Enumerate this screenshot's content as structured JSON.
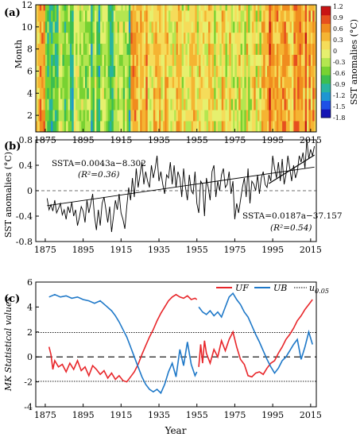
{
  "chart_data": [
    {
      "type": "heatmap",
      "panel_label": "(a)",
      "ylabel": "Month",
      "x_ticks": [
        "1875",
        "1895",
        "1915",
        "1935",
        "1955",
        "1975",
        "1995",
        "2015"
      ],
      "y_ticks": [
        "2",
        "4",
        "6",
        "8",
        "10",
        "12"
      ],
      "xlim": [
        1870,
        2018
      ],
      "ylim": [
        0.5,
        12
      ],
      "colorbar": {
        "label": "SST anomalies (°C)",
        "ticks": [
          "1.2",
          "0.9",
          "0.6",
          "0.3",
          "0",
          "-0.3",
          "-0.6",
          "-0.9",
          "-1.2",
          "-1.5",
          "-1.8"
        ],
        "colors": [
          "#1414b4",
          "#1e50e6",
          "#1e96d2",
          "#28b4a0",
          "#3cbe50",
          "#78d232",
          "#b4e650",
          "#e6f06e",
          "#f5dc5a",
          "#f5b432",
          "#f08c1e",
          "#e6501e",
          "#c81414"
        ]
      },
      "description_values": {
        "period_means": [
          {
            "from": 1875,
            "to": 1920,
            "mean": -0.5
          },
          {
            "from": 1920,
            "to": 1945,
            "mean": 0.25
          },
          {
            "from": 1945,
            "to": 1975,
            "mean": 0.05
          },
          {
            "from": 1975,
            "to": 1990,
            "mean": 0.0
          },
          {
            "from": 1990,
            "to": 2017,
            "mean": 0.45
          }
        ]
      }
    },
    {
      "type": "line",
      "panel_label": "(b)",
      "ylabel": "SST anomalies (°C)",
      "x_ticks": [
        "1875",
        "1895",
        "1915",
        "1935",
        "1955",
        "1975",
        "1995",
        "2015"
      ],
      "y_ticks": [
        "0.8",
        "0.4",
        "0",
        "-0.4",
        "-0.8"
      ],
      "xlim": [
        1870,
        2018
      ],
      "ylim": [
        -0.8,
        0.8
      ],
      "series": [
        {
          "color": "#000000",
          "x": [
            1876,
            1877,
            1878,
            1879,
            1880,
            1881,
            1882,
            1883,
            1884,
            1885,
            1886,
            1887,
            1888,
            1889,
            1890,
            1891,
            1892,
            1893,
            1894,
            1895,
            1896,
            1897,
            1898,
            1899,
            1900,
            1901,
            1902,
            1903,
            1904,
            1905,
            1906,
            1907,
            1908,
            1909,
            1910,
            1911,
            1912,
            1913,
            1914,
            1915,
            1916,
            1917,
            1918,
            1919,
            1920,
            1921,
            1922,
            1923,
            1924,
            1925,
            1926,
            1927,
            1928,
            1929,
            1930,
            1931,
            1932,
            1933,
            1934,
            1935,
            1936,
            1937,
            1938,
            1939,
            1940,
            1941,
            1942,
            1943,
            1944,
            1945,
            1946,
            1947,
            1948,
            1949,
            1950,
            1951,
            1952,
            1953,
            1954,
            1955,
            1956,
            1957,
            1958,
            1959,
            1960,
            1961,
            1962,
            1963,
            1964,
            1965,
            1966,
            1967,
            1968,
            1969,
            1970,
            1971,
            1972,
            1973,
            1974,
            1975,
            1976,
            1977,
            1978,
            1979,
            1980,
            1981,
            1982,
            1983,
            1984,
            1985,
            1986,
            1987,
            1988,
            1989,
            1990,
            1991,
            1992,
            1993,
            1994,
            1995,
            1996,
            1997,
            1998,
            1999,
            2000,
            2001,
            2002,
            2003,
            2004,
            2005,
            2006,
            2007,
            2008,
            2009,
            2010,
            2011,
            2012,
            2013,
            2014,
            2015,
            2016,
            2017
          ],
          "y": [
            -0.12,
            -0.3,
            -0.22,
            -0.32,
            -0.15,
            -0.35,
            -0.28,
            -0.2,
            -0.38,
            -0.3,
            -0.45,
            -0.25,
            -0.35,
            -0.18,
            -0.4,
            -0.3,
            -0.55,
            -0.42,
            -0.25,
            -0.32,
            -0.5,
            -0.15,
            -0.35,
            -0.2,
            -0.05,
            -0.4,
            -0.62,
            -0.3,
            -0.55,
            -0.2,
            -0.1,
            -0.3,
            -0.5,
            -0.25,
            -0.65,
            -0.4,
            -0.15,
            -0.3,
            -0.05,
            -0.35,
            -0.45,
            -0.6,
            -0.25,
            0.05,
            -0.15,
            0.2,
            -0.1,
            0.35,
            0.05,
            0.25,
            0.45,
            0.1,
            0.3,
            0.15,
            0.05,
            0.4,
            0.2,
            0.35,
            0.55,
            0.15,
            0.3,
            0.1,
            -0.05,
            0.25,
            0.2,
            0.45,
            0.1,
            0.4,
            0.05,
            0.3,
            0.2,
            -0.1,
            0.35,
            0.05,
            -0.15,
            0.25,
            0.0,
            -0.05,
            0.3,
            -0.2,
            -0.35,
            0.15,
            0.1,
            -0.4,
            0.2,
            0.05,
            -0.15,
            0.3,
            0.4,
            -0.1,
            0.15,
            0.0,
            0.25,
            0.35,
            0.05,
            0.1,
            0.3,
            -0.05,
            0.15,
            -0.45,
            -0.2,
            -0.35,
            -0.15,
            0.05,
            0.2,
            -0.1,
            0.35,
            -0.2,
            0.15,
            0.1,
            0.0,
            0.25,
            -0.05,
            0.2,
            0.3,
            0.1,
            0.05,
            0.25,
            0.15,
            0.55,
            0.35,
            0.2,
            0.45,
            0.15,
            0.5,
            0.1,
            0.25,
            0.55,
            0.35,
            0.15,
            0.4,
            0.2,
            0.3,
            0.55,
            0.45,
            0.6,
            0.35,
            0.8,
            0.5,
            0.65,
            0.55,
            0.7
          ]
        }
      ],
      "fits": [
        {
          "equation": "SSTA=0.0043a−8.302",
          "r2": "(R²=0.36)",
          "slope": 0.0043,
          "intercept": -8.302,
          "x": [
            1876,
            2017
          ]
        },
        {
          "equation": "SSTA=0.0187a−37.157",
          "r2": "(R²=0.54)",
          "slope": 0.0187,
          "intercept": -37.157,
          "x": [
            1993,
            2017
          ]
        }
      ],
      "zero_line": 0
    },
    {
      "type": "line",
      "panel_label": "(c)",
      "ylabel": "MK Statistical values",
      "xlabel": "Year",
      "x_ticks": [
        "1875",
        "1895",
        "1915",
        "1935",
        "1955",
        "1975",
        "1995",
        "2015"
      ],
      "y_ticks": [
        "6",
        "4",
        "2",
        "0",
        "-2",
        "-4"
      ],
      "xlim": [
        1870,
        2018
      ],
      "ylim": [
        -4,
        6
      ],
      "legend": [
        "UF",
        "UB",
        "u0.05"
      ],
      "legend_placement": "top-right",
      "reference_lines": [
        1.96,
        -1.96,
        0
      ],
      "series": [
        {
          "name": "UF",
          "color": "#e8262a",
          "x": [
            1877,
            1878,
            1879,
            1880,
            1882,
            1884,
            1886,
            1888,
            1890,
            1892,
            1894,
            1896,
            1898,
            1900,
            1902,
            1904,
            1906,
            1908,
            1910,
            1912,
            1914,
            1916,
            1918,
            1920,
            1922,
            1924,
            1926,
            1928,
            1930,
            1932,
            1934,
            1936,
            1938,
            1940,
            1942,
            1944,
            1946,
            1948,
            1950,
            1952,
            1954,
            1955
          ],
          "y": [
            0.8,
            0.2,
            -1.0,
            -0.3,
            -0.8,
            -0.6,
            -1.2,
            -0.5,
            -1.0,
            -0.3,
            -1.1,
            -0.8,
            -1.5,
            -0.7,
            -1.0,
            -1.4,
            -1.1,
            -1.7,
            -1.3,
            -1.8,
            -1.5,
            -1.9,
            -2.0,
            -1.6,
            -1.2,
            -0.6,
            0.2,
            0.9,
            1.6,
            2.2,
            2.9,
            3.5,
            4.0,
            4.5,
            4.8,
            5.0,
            4.8,
            4.7,
            4.9,
            4.6,
            4.7,
            4.6
          ]
        },
        {
          "name": "UF",
          "color": "#e8262a",
          "x": [
            1956,
            1957,
            1958,
            1959,
            1960,
            1962,
            1964,
            1966,
            1968,
            1970,
            1972,
            1974,
            1976,
            1978,
            1980,
            1982,
            1984,
            1986,
            1988,
            1990,
            1992,
            1994,
            1996,
            1998,
            2000,
            2002,
            2004,
            2006,
            2008,
            2010,
            2012,
            2014,
            2016
          ],
          "y": [
            -0.8,
            1.0,
            -0.5,
            1.3,
            0.3,
            -0.5,
            0.6,
            0.0,
            1.3,
            0.5,
            1.4,
            2.0,
            0.8,
            -0.2,
            -0.6,
            -1.5,
            -1.6,
            -1.3,
            -1.2,
            -1.4,
            -0.9,
            -0.5,
            -0.3,
            0.3,
            0.8,
            1.4,
            1.8,
            2.3,
            2.9,
            3.3,
            3.8,
            4.2,
            4.6
          ]
        },
        {
          "name": "UB",
          "color": "#1e78c8",
          "x": [
            1877,
            1880,
            1883,
            1886,
            1889,
            1892,
            1895,
            1898,
            1901,
            1904,
            1907,
            1910,
            1912,
            1914,
            1916,
            1918,
            1920,
            1922,
            1924,
            1926,
            1928,
            1930,
            1932,
            1934,
            1936,
            1938,
            1940,
            1942,
            1944,
            1946,
            1948,
            1950,
            1952,
            1954,
            1955
          ],
          "y": [
            4.8,
            5.0,
            4.8,
            4.9,
            4.7,
            4.8,
            4.6,
            4.5,
            4.3,
            4.5,
            4.1,
            3.7,
            3.3,
            2.8,
            2.2,
            1.6,
            0.8,
            0.0,
            -0.8,
            -1.6,
            -2.2,
            -2.6,
            -2.8,
            -2.6,
            -2.9,
            -2.2,
            -1.2,
            -0.5,
            -1.6,
            0.6,
            -0.7,
            1.2,
            -0.6,
            -1.5,
            -1.2
          ]
        },
        {
          "name": "UB",
          "color": "#1e78c8",
          "x": [
            1956,
            1958,
            1960,
            1962,
            1964,
            1966,
            1968,
            1970,
            1972,
            1974,
            1976,
            1978,
            1980,
            1982,
            1984,
            1986,
            1988,
            1990,
            1992,
            1994,
            1996,
            1998,
            2000,
            2002,
            2004,
            2006,
            2008,
            2010,
            2012,
            2014,
            2016
          ],
          "y": [
            4.0,
            3.6,
            3.4,
            3.7,
            3.3,
            3.6,
            3.2,
            4.0,
            4.8,
            5.1,
            4.6,
            4.2,
            3.6,
            3.2,
            2.5,
            1.8,
            1.2,
            0.5,
            -0.2,
            -0.8,
            -1.3,
            -0.9,
            -0.3,
            0.0,
            0.5,
            1.0,
            1.4,
            -0.2,
            0.8,
            2.0,
            1.0
          ]
        }
      ]
    }
  ]
}
